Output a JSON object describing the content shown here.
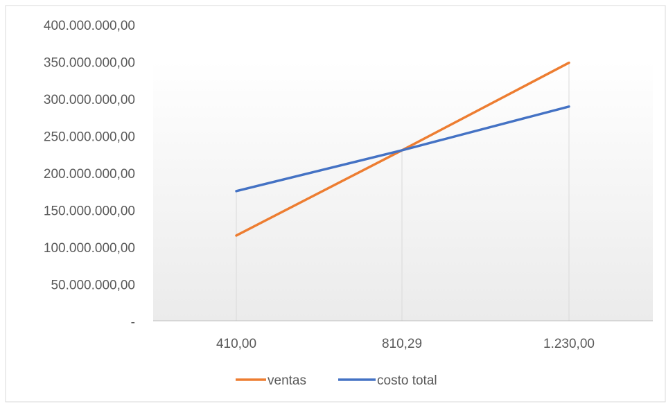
{
  "chart_data": {
    "type": "line",
    "title": "",
    "categories": [
      "410,00",
      "810,29",
      "1.230,00"
    ],
    "series": [
      {
        "name": "ventas",
        "color": "#ed7d31",
        "values": [
          115000000,
          230000000,
          348000000
        ]
      },
      {
        "name": "costo total",
        "color": "#4472c4",
        "values": [
          175000000,
          230000000,
          289000000
        ]
      }
    ],
    "ylim": [
      0,
      400000000
    ],
    "yticks": [
      {
        "value": 0,
        "label": "-"
      },
      {
        "value": 50000000,
        "label": "50.000.000,00"
      },
      {
        "value": 100000000,
        "label": "100.000.000,00"
      },
      {
        "value": 150000000,
        "label": "150.000.000,00"
      },
      {
        "value": 200000000,
        "label": "200.000.000,00"
      },
      {
        "value": 250000000,
        "label": "250.000.000,00"
      },
      {
        "value": 300000000,
        "label": "300.000.000,00"
      },
      {
        "value": 350000000,
        "label": "350.000.000,00"
      },
      {
        "value": 400000000,
        "label": "400.000.000,00"
      }
    ],
    "xlabel": "",
    "ylabel": "",
    "grid": "vertical drop lines at categories",
    "legend_position": "bottom"
  }
}
